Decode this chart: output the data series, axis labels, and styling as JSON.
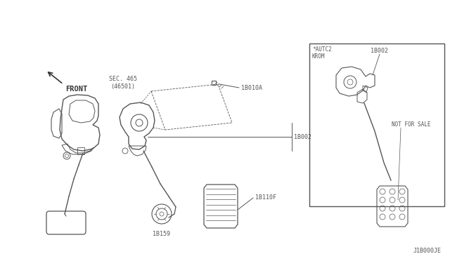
{
  "bg_color": "#ffffff",
  "lc": "#555555",
  "lc_dark": "#333333",
  "fig_width": 6.4,
  "fig_height": 3.72,
  "dpi": 100,
  "labels": {
    "front": "FRONT",
    "sec465": "SEC. 465\n(46501)",
    "part_18010A": "1B010A",
    "part_18002": "1B002",
    "part_18110F": "1B110F",
    "part_19159": "1B159",
    "autc2": "*AUTC2\nKROM",
    "not_for_sale": "NOT FOR SALE",
    "diagram_code": "J1B000JE"
  }
}
